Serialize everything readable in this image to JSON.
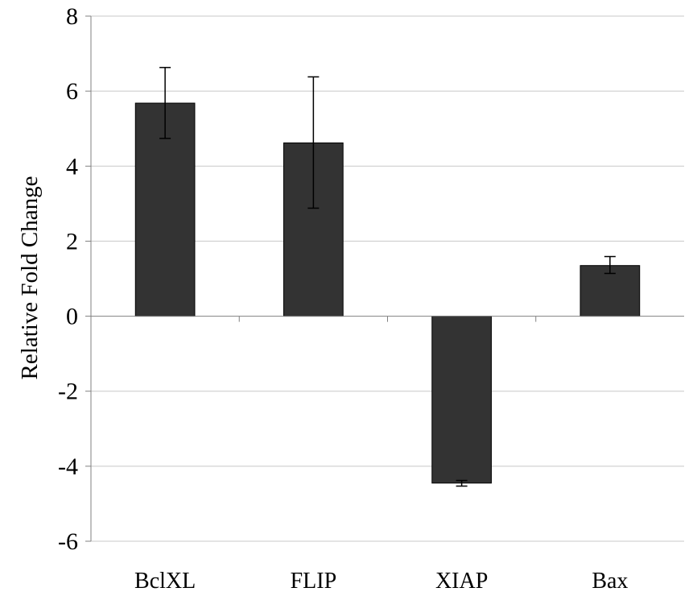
{
  "chart_data": {
    "type": "bar",
    "title": "",
    "xlabel": "",
    "ylabel": "Relative Fold Change",
    "categories": [
      "BclXL",
      "FLIP",
      "XIAP",
      "Bax"
    ],
    "series": [
      {
        "values": [
          5.68,
          4.62,
          -4.45,
          1.35
        ],
        "error_low": [
          4.74,
          2.88,
          -4.53,
          1.14
        ],
        "error_high": [
          6.63,
          6.38,
          -4.38,
          1.59
        ]
      }
    ],
    "ylim": [
      -6,
      8
    ],
    "yticks": [
      8,
      6,
      4,
      2,
      0,
      -2,
      -4,
      -6
    ],
    "grid": true,
    "legend": "none",
    "colors": {
      "bar": "#333333",
      "grid": "#c8c8c8",
      "axis": "#808080"
    }
  }
}
